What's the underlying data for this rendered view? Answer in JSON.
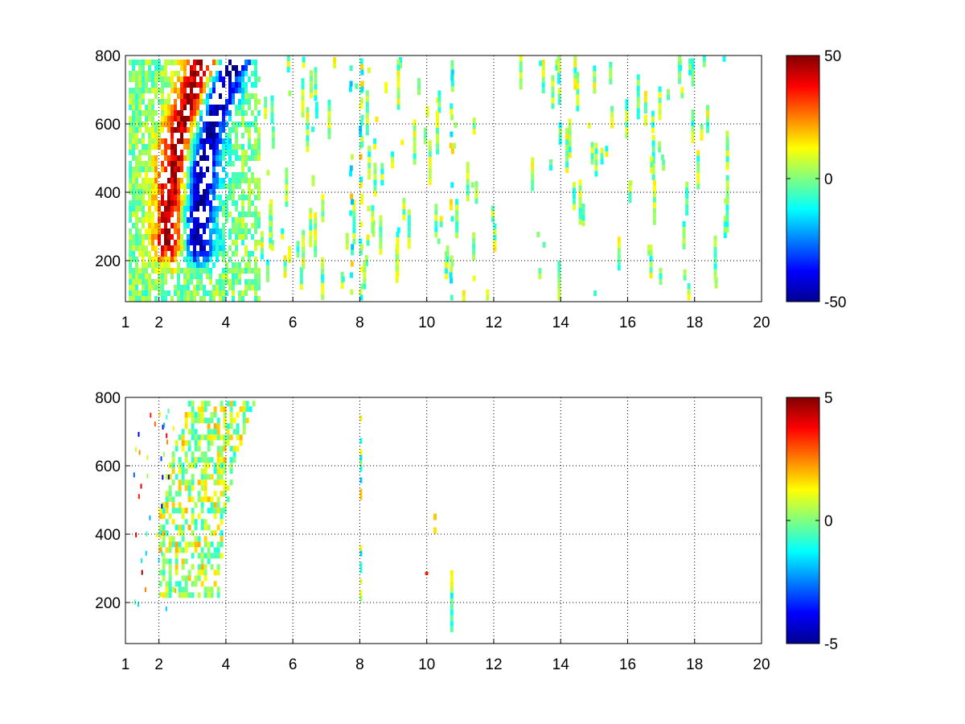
{
  "chart_data": [
    {
      "type": "heatmap",
      "title": "",
      "xlabel": "",
      "ylabel": "",
      "xlim": [
        1,
        20
      ],
      "ylim": [
        80,
        800
      ],
      "x_ticks": [
        1,
        2,
        4,
        6,
        8,
        10,
        12,
        14,
        16,
        18,
        20
      ],
      "y_ticks": [
        200,
        400,
        600,
        800
      ],
      "grid": true,
      "colormap": "jet",
      "colorbar": {
        "range": [
          -50,
          50
        ],
        "ticks": [
          -50,
          0,
          50
        ]
      },
      "features": [
        {
          "name": "positive ridge",
          "approx_x": [
            2.2,
            3.4
          ],
          "approx_y": [
            300,
            650
          ],
          "peak_value": 50
        },
        {
          "name": "negative ridge",
          "approx_x": [
            2.8,
            4.2
          ],
          "approx_y": [
            300,
            700
          ],
          "peak_value": -50
        },
        {
          "name": "sparse vertical streaks",
          "approx_x": [
            5,
            19
          ],
          "approx_y": [
            80,
            800
          ],
          "typical_value": 0
        }
      ]
    },
    {
      "type": "heatmap",
      "title": "",
      "xlabel": "",
      "ylabel": "",
      "xlim": [
        1,
        20
      ],
      "ylim": [
        80,
        800
      ],
      "x_ticks": [
        1,
        2,
        4,
        6,
        8,
        10,
        12,
        14,
        16,
        18,
        20
      ],
      "y_ticks": [
        200,
        400,
        600,
        800
      ],
      "grid": true,
      "colormap": "jet",
      "colorbar": {
        "range": [
          -5,
          5
        ],
        "ticks": [
          -5,
          0,
          5
        ]
      },
      "features": [
        {
          "name": "main cluster",
          "approx_x": [
            2,
            4.8
          ],
          "approx_y": [
            240,
            800
          ],
          "typical_value": 0.5
        },
        {
          "name": "streak at 8",
          "approx_x": [
            7.9,
            8.1
          ],
          "approx_y": [
            220,
            780
          ],
          "typical_value": 0
        },
        {
          "name": "streak at 10.7",
          "approx_x": [
            10.6,
            10.8
          ],
          "approx_y": [
            130,
            300
          ],
          "typical_value": 0
        }
      ]
    }
  ]
}
